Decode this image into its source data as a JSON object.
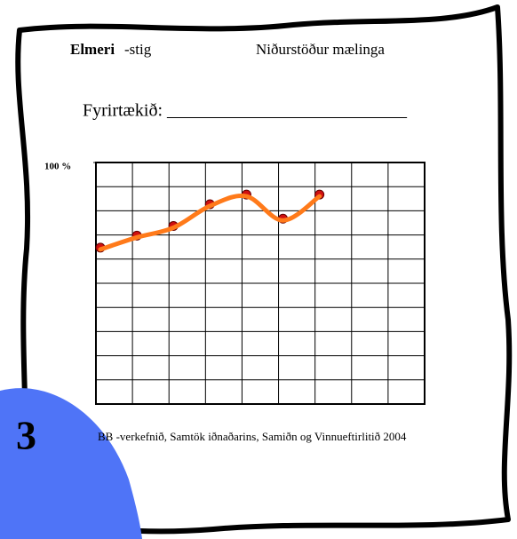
{
  "header": {
    "brand": "Elmeri",
    "brand_suffix": "-stig",
    "title": "Niðurstöður mælinga",
    "company_label": "Fyrirtækið: ___________________________"
  },
  "chart_data": {
    "type": "line",
    "categories": [
      null,
      null,
      null,
      null,
      null,
      null,
      null
    ],
    "series": [
      {
        "color": "#ff7a1a",
        "values": [
          64,
          69,
          73,
          82,
          86,
          76,
          86
        ]
      }
    ],
    "ylim": [
      0,
      100
    ],
    "yticks": [
      {
        "value": 100,
        "label": "100 %"
      }
    ],
    "grid": true
  },
  "footer": "BB -verkefnið, Samtök iðnaðarins, Samiðn og Vinnueftirlitið 2004",
  "badge": "3"
}
